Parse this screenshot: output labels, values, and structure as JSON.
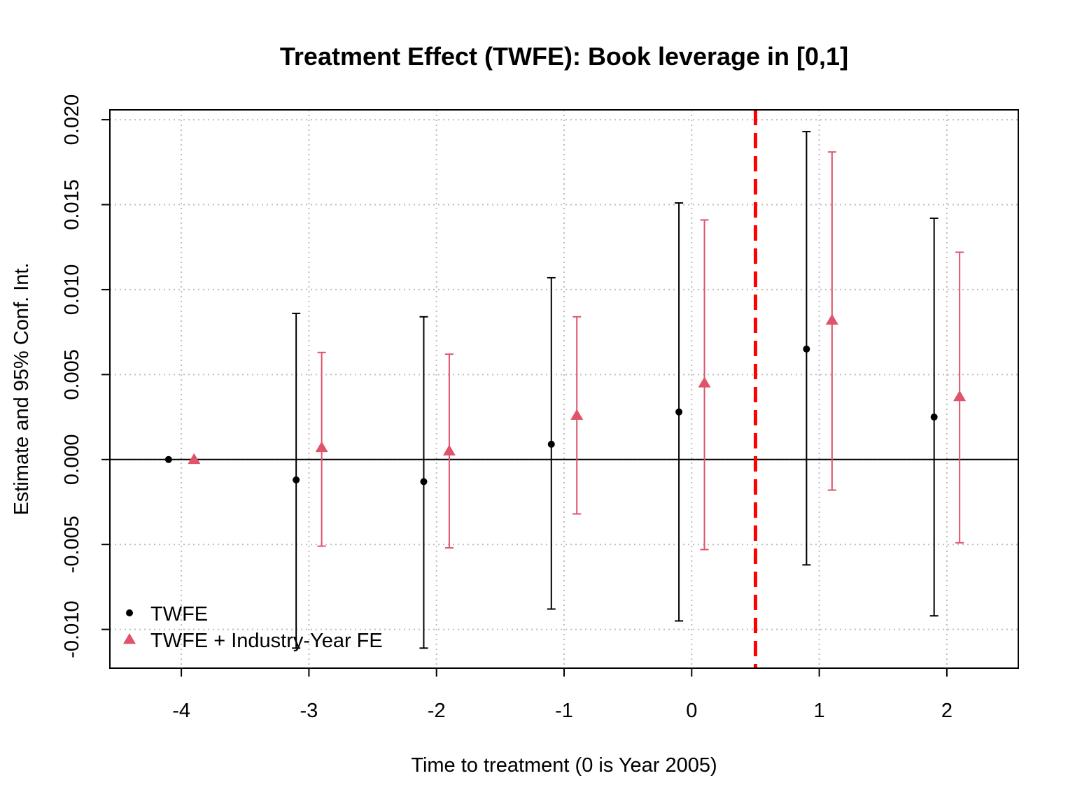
{
  "chart_data": {
    "type": "scatter",
    "title": "Treatment Effect (TWFE): Book leverage in [0,1]",
    "xlabel": "Time to treatment (0 is Year 2005)",
    "ylabel": "Estimate and 95% Conf. Int.",
    "xlim": [
      -4.56,
      2.56
    ],
    "ylim": [
      -0.01228,
      0.02058
    ],
    "x_ticks": [
      -4,
      -3,
      -2,
      -1,
      0,
      1,
      2
    ],
    "x_tick_labels": [
      "-4",
      "-3",
      "-2",
      "-1",
      "0",
      "1",
      "2"
    ],
    "y_ticks": [
      -0.01,
      -0.005,
      0.0,
      0.005,
      0.01,
      0.015,
      0.02
    ],
    "y_tick_labels": [
      "-0.010",
      "-0.005",
      "0.000",
      "0.005",
      "0.010",
      "0.015",
      "0.020"
    ],
    "grid": true,
    "zero_line": 0,
    "treatment_line_x": 0.5,
    "treatment_line_color": "#FF0000",
    "legend_position": "bottom-left",
    "series": [
      {
        "name": "TWFE",
        "color": "#000000",
        "marker": "circle",
        "x_offset": -0.1,
        "x": [
          -4,
          -3,
          -2,
          -1,
          0,
          1,
          2
        ],
        "estimate": [
          0.0,
          -0.0012,
          -0.0013,
          0.0009,
          0.0028,
          0.0065,
          0.0025
        ],
        "ci_low": [
          null,
          -0.0111,
          -0.0111,
          -0.0088,
          -0.0095,
          -0.0062,
          -0.0092
        ],
        "ci_high": [
          null,
          0.0086,
          0.0084,
          0.0107,
          0.0151,
          0.0193,
          0.0142
        ]
      },
      {
        "name": "TWFE + Industry-Year FE",
        "color": "#DF536B",
        "marker": "triangle",
        "x_offset": 0.1,
        "x": [
          -4,
          -3,
          -2,
          -1,
          0,
          1,
          2
        ],
        "estimate": [
          0.0,
          0.0007,
          0.0005,
          0.0026,
          0.0045,
          0.0082,
          0.0037
        ],
        "ci_low": [
          null,
          -0.0051,
          -0.0052,
          -0.0032,
          -0.0053,
          -0.0018,
          -0.0049
        ],
        "ci_high": [
          null,
          0.0063,
          0.0062,
          0.0084,
          0.0141,
          0.0181,
          0.0122
        ]
      }
    ]
  }
}
